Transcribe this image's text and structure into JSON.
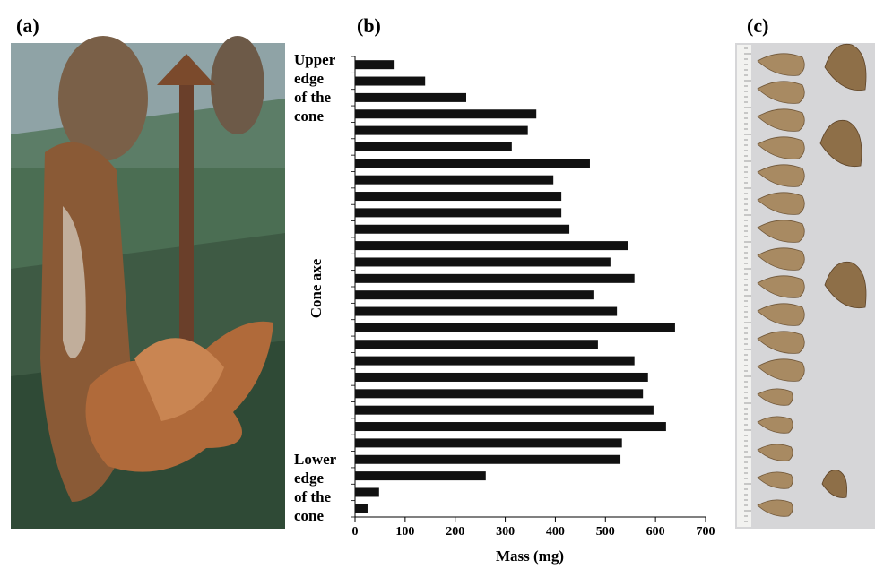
{
  "panel_labels": [
    "(a)",
    "(b)",
    "(c)"
  ],
  "chart_data": {
    "type": "hbar",
    "x_label": "Mass (mg)",
    "y_label": "Cone axe",
    "annotations": [
      [
        "Upper",
        "edge",
        "of the",
        "cone"
      ],
      [
        "Lower",
        "edge",
        "of the",
        "cone"
      ]
    ],
    "values": [
      25,
      48,
      261,
      530,
      533,
      621,
      596,
      575,
      585,
      558,
      485,
      639,
      523,
      476,
      558,
      510,
      546,
      428,
      412,
      412,
      396,
      469,
      313,
      345,
      362,
      222,
      140,
      79
    ],
    "color": "#111111",
    "xlim": [
      0,
      700
    ],
    "xticks": [
      0,
      100,
      200,
      300,
      400,
      500,
      600,
      700
    ]
  }
}
